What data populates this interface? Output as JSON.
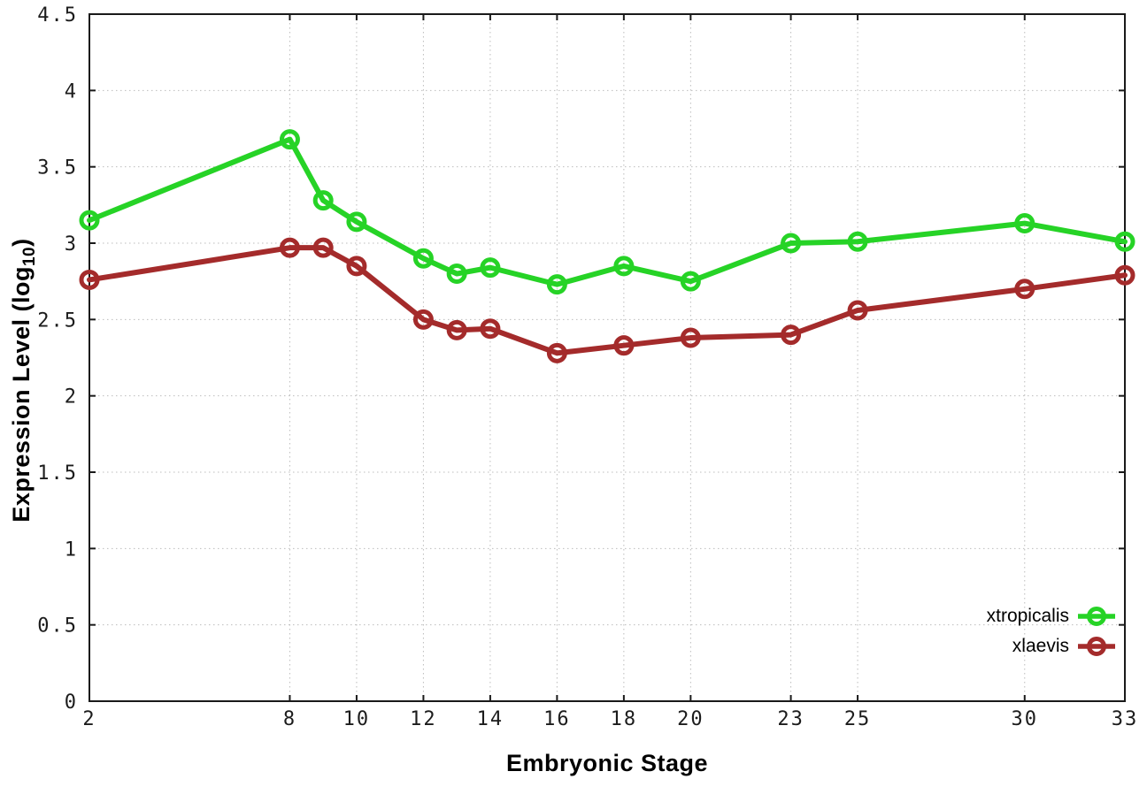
{
  "chart_data": {
    "type": "line",
    "title": "",
    "xlabel": "Embryonic Stage",
    "ylabel": {
      "prefix": "Expression Level (log",
      "sub": "10",
      "suffix": ")"
    },
    "x": [
      2,
      8,
      9,
      10,
      12,
      13,
      14,
      16,
      18,
      20,
      23,
      25,
      30,
      33
    ],
    "x_ticks": [
      2,
      8,
      10,
      12,
      14,
      16,
      18,
      20,
      23,
      25,
      30,
      33
    ],
    "y_ticks": [
      "0",
      "0.5",
      "1",
      "1.5",
      "2",
      "2.5",
      "3",
      "3.5",
      "4",
      "4.5"
    ],
    "xlim": [
      2,
      33
    ],
    "ylim": [
      0,
      4.5
    ],
    "grid": true,
    "legend_position": "bottom-right-inside",
    "marker": "open-circle",
    "series": [
      {
        "name": "xtropicalis",
        "color": "#26D326",
        "values": [
          3.15,
          3.68,
          3.28,
          3.14,
          2.9,
          2.8,
          2.84,
          2.73,
          2.85,
          2.75,
          3.0,
          3.01,
          3.13,
          3.01
        ]
      },
      {
        "name": "xlaevis",
        "color": "#A42B2B",
        "values": [
          2.76,
          2.97,
          2.97,
          2.85,
          2.5,
          2.43,
          2.44,
          2.28,
          2.33,
          2.38,
          2.4,
          2.56,
          2.7,
          2.79
        ]
      }
    ],
    "colors": {
      "grid": "#bcbcbc",
      "border": "#1a1a1a",
      "tick_text": "#1c1c1c"
    }
  }
}
